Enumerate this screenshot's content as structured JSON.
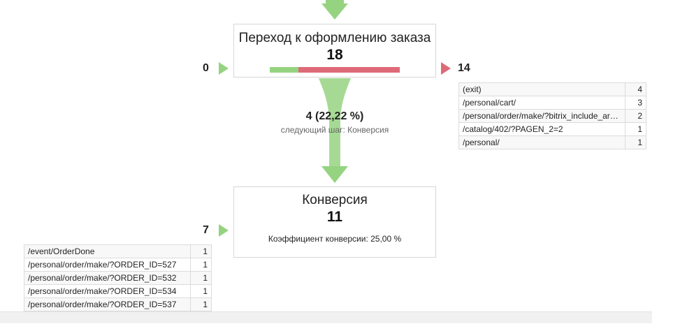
{
  "steps": [
    {
      "title": "Переход к оформлению заказа",
      "count": "18",
      "entrances": "0",
      "exits": "14",
      "continue_fraction": 0.2222
    },
    {
      "title": "Конверсия",
      "count": "11",
      "entrances": "7",
      "conversion_text": "Коэффициент конверсии: 25,00 %"
    }
  ],
  "transition": {
    "count": "4 (22,22 %)",
    "next_step": "следующий шаг: Конверсия"
  },
  "exit_paths": [
    {
      "path": "(exit)",
      "count": "4"
    },
    {
      "path": "/personal/cart/",
      "count": "3"
    },
    {
      "path": "/personal/order/make/?bitrix_include_areas=N",
      "count": "2"
    },
    {
      "path": "/catalog/402/?PAGEN_2=2",
      "count": "1"
    },
    {
      "path": "/personal/",
      "count": "1"
    }
  ],
  "entrance_paths": [
    {
      "path": "/event/OrderDone",
      "count": "1"
    },
    {
      "path": "/personal/order/make/?ORDER_ID=527",
      "count": "1"
    },
    {
      "path": "/personal/order/make/?ORDER_ID=532",
      "count": "1"
    },
    {
      "path": "/personal/order/make/?ORDER_ID=534",
      "count": "1"
    },
    {
      "path": "/personal/order/make/?ORDER_ID=537",
      "count": "1"
    }
  ],
  "colors": {
    "continue": "#96d381",
    "exit": "#de6a78",
    "box_border": "#d6d6d6"
  }
}
